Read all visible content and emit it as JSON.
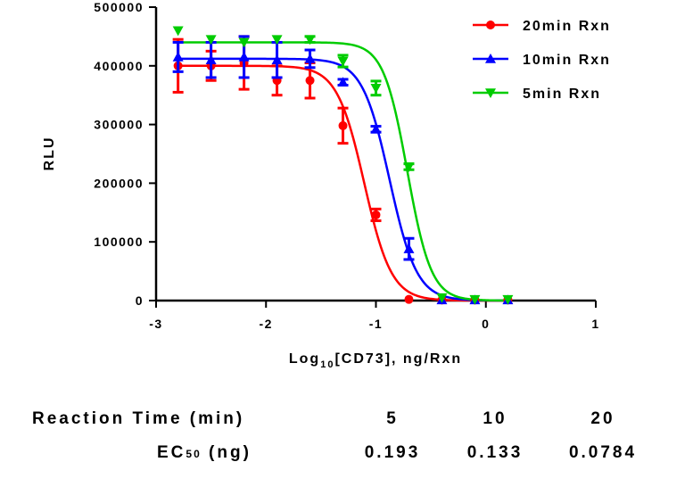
{
  "chart_data": {
    "type": "scatter",
    "xlabel_prefix": "Log",
    "xlabel_sub": "10",
    "xlabel_suffix": "[CD73], ng/Rxn",
    "ylabel": "RLU",
    "xlim": [
      -3,
      1
    ],
    "ylim": [
      0,
      500000
    ],
    "xticks": [
      "-3",
      "-2",
      "-1",
      "0",
      "1"
    ],
    "yticks": [
      "0",
      "100000",
      "200000",
      "300000",
      "400000",
      "500000"
    ],
    "legend_position": "top-right",
    "series": [
      {
        "name": "20min Rxn",
        "color": "#ff0000",
        "marker": "circle",
        "fit": {
          "top": 400000,
          "bottom": 0,
          "logec50": -1.106,
          "hill": -3.5
        },
        "points": [
          {
            "x": -2.8,
            "y": 400000,
            "err": 45000
          },
          {
            "x": -2.5,
            "y": 400000,
            "err": 25000
          },
          {
            "x": -2.2,
            "y": 405000,
            "err": 45000
          },
          {
            "x": -1.9,
            "y": 375000,
            "err": 25000
          },
          {
            "x": -1.6,
            "y": 375000,
            "err": 30000
          },
          {
            "x": -1.3,
            "y": 298000,
            "err": 30000
          },
          {
            "x": -1.0,
            "y": 146000,
            "err": 10000
          },
          {
            "x": -0.7,
            "y": 2000,
            "err": 0
          },
          {
            "x": -0.4,
            "y": 1000,
            "err": 0
          },
          {
            "x": -0.1,
            "y": 1000,
            "err": 0
          },
          {
            "x": 0.2,
            "y": 1000,
            "err": 0
          }
        ]
      },
      {
        "name": "10min Rxn",
        "color": "#0000ff",
        "marker": "triangle-up",
        "fit": {
          "top": 412000,
          "bottom": 0,
          "logec50": -0.876,
          "hill": -3.5
        },
        "points": [
          {
            "x": -2.8,
            "y": 415000,
            "err": 25000
          },
          {
            "x": -2.5,
            "y": 410000,
            "err": 30000
          },
          {
            "x": -2.2,
            "y": 415000,
            "err": 35000
          },
          {
            "x": -1.9,
            "y": 410000,
            "err": 30000
          },
          {
            "x": -1.6,
            "y": 412000,
            "err": 15000
          },
          {
            "x": -1.3,
            "y": 372000,
            "err": 5000
          },
          {
            "x": -1.0,
            "y": 292000,
            "err": 5000
          },
          {
            "x": -0.7,
            "y": 88000,
            "err": 18000
          },
          {
            "x": -0.4,
            "y": 1000,
            "err": 0
          },
          {
            "x": -0.1,
            "y": 1000,
            "err": 0
          },
          {
            "x": 0.2,
            "y": 1000,
            "err": 0
          }
        ]
      },
      {
        "name": "5min Rxn",
        "color": "#00cc00",
        "marker": "triangle-down",
        "fit": {
          "top": 440000,
          "bottom": 0,
          "logec50": -0.714,
          "hill": -4.0
        },
        "points": [
          {
            "x": -2.8,
            "y": 460000,
            "err": 0
          },
          {
            "x": -2.5,
            "y": 445000,
            "err": 0
          },
          {
            "x": -2.2,
            "y": 440000,
            "err": 0
          },
          {
            "x": -1.9,
            "y": 445000,
            "err": 0
          },
          {
            "x": -1.6,
            "y": 445000,
            "err": 5000
          },
          {
            "x": -1.3,
            "y": 408000,
            "err": 10000
          },
          {
            "x": -1.0,
            "y": 362000,
            "err": 12000
          },
          {
            "x": -0.7,
            "y": 228000,
            "err": 5000
          },
          {
            "x": -0.4,
            "y": 5000,
            "err": 0
          },
          {
            "x": -0.1,
            "y": 2000,
            "err": 0
          },
          {
            "x": 0.2,
            "y": 2000,
            "err": 0
          }
        ]
      }
    ]
  },
  "table": {
    "row1_label": "Reaction Time (min)",
    "row2_label_main": "EC",
    "row2_label_sub": "50",
    "row2_label_suffix": " (ng)",
    "times": [
      "5",
      "10",
      "20"
    ],
    "ec50": [
      "0.193",
      "0.133",
      "0.0784"
    ]
  }
}
